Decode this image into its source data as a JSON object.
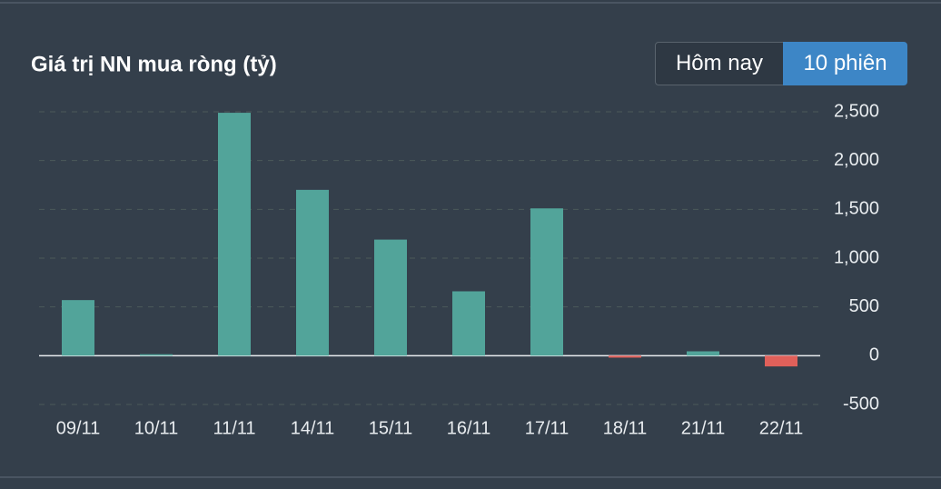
{
  "buttons": [
    "Hôm nay",
    "10 phiên"
  ],
  "active_button": 1,
  "chart_data": {
    "type": "bar",
    "title": "Giá trị NN mua ròng (tỷ)",
    "categories": [
      "09/11",
      "10/11",
      "11/11",
      "14/11",
      "15/11",
      "16/11",
      "17/11",
      "18/11",
      "21/11",
      "22/11"
    ],
    "values": [
      570,
      15,
      2490,
      1700,
      1190,
      660,
      1510,
      -20,
      45,
      -110
    ],
    "color": "#52a49a",
    "negative_color": "#e0605a",
    "ylim": [
      -500,
      2500
    ],
    "yticks": [
      -500,
      0,
      500,
      {
        "value": 1000,
        "label": "1,000"
      },
      {
        "value": 1500,
        "label": "1,500"
      },
      {
        "value": 2000,
        "label": "2,000"
      },
      {
        "value": 2500,
        "label": "2,500"
      }
    ],
    "grid": true
  }
}
